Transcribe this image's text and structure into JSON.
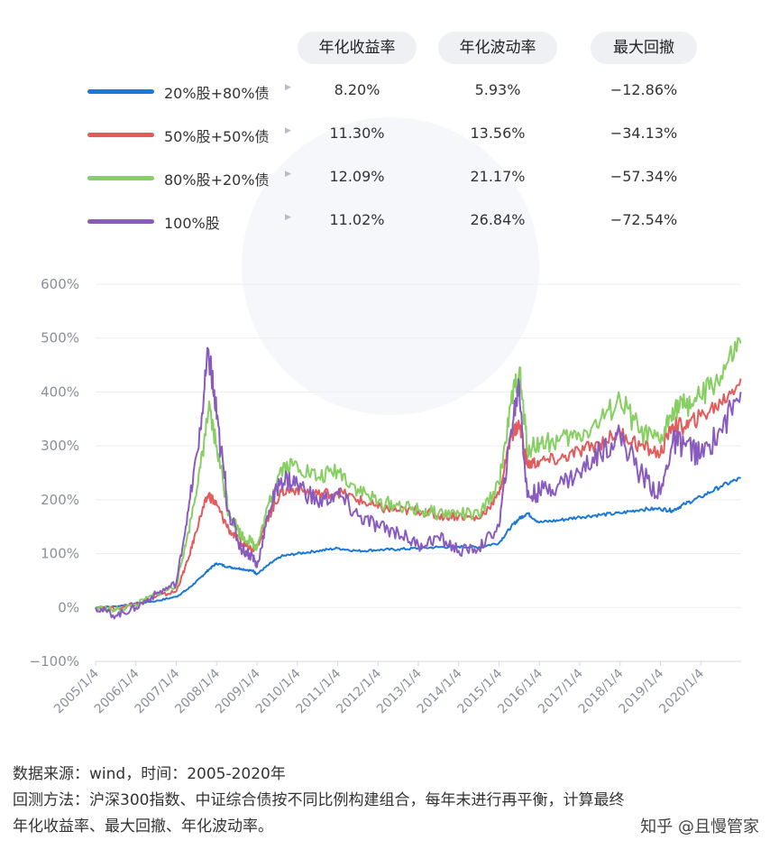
{
  "table": {
    "headers": [
      "年化收益率",
      "年化波动率",
      "最大回撤"
    ],
    "rows": [
      {
        "label": "20%股+80%债",
        "color": "#1a78d8",
        "ret": "8.20%",
        "vol": "5.93%",
        "dd": "−12.86%"
      },
      {
        "label": "50%股+50%债",
        "color": "#e35b5b",
        "ret": "11.30%",
        "vol": "13.56%",
        "dd": "−34.13%"
      },
      {
        "label": "80%股+20%债",
        "color": "#87cf62",
        "ret": "12.09%",
        "vol": "21.17%",
        "dd": "−57.34%"
      },
      {
        "label": "100%股",
        "color": "#8a5bbf",
        "ret": "11.02%",
        "vol": "26.84%",
        "dd": "−72.54%"
      }
    ]
  },
  "chart_data": {
    "type": "line",
    "y_tick_labels": [
      "600%",
      "500%",
      "400%",
      "300%",
      "200%",
      "100%",
      "0%",
      "−100%"
    ],
    "ylim": [
      -100,
      600
    ],
    "x_tick_labels": [
      "2005/1/4",
      "2006/1/4",
      "2007/1/4",
      "2008/1/4",
      "2009/1/4",
      "2010/1/4",
      "2011/1/4",
      "2012/1/4",
      "2013/1/4",
      "2014/1/4",
      "2015/1/4",
      "2016/1/4",
      "2017/1/4",
      "2018/1/4",
      "2019/1/4",
      "2020/1/4"
    ],
    "xlim": [
      2005.0,
      2021.0
    ],
    "grid": true,
    "series": [
      {
        "name": "20%股+80%债",
        "color": "#1a78d8",
        "x": [
          2005.0,
          2005.5,
          2006.0,
          2006.5,
          2007.0,
          2007.3,
          2007.6,
          2007.8,
          2008.0,
          2008.3,
          2008.6,
          2008.9,
          2009.0,
          2009.3,
          2009.6,
          2010.0,
          2010.5,
          2011.0,
          2011.5,
          2012.0,
          2012.5,
          2013.0,
          2013.5,
          2014.0,
          2014.5,
          2015.0,
          2015.3,
          2015.5,
          2015.7,
          2016.0,
          2016.5,
          2017.0,
          2017.5,
          2018.0,
          2018.5,
          2019.0,
          2019.3,
          2019.6,
          2020.0,
          2020.5,
          2020.99
        ],
        "y": [
          0,
          2,
          8,
          12,
          20,
          35,
          55,
          70,
          82,
          75,
          72,
          68,
          62,
          80,
          95,
          100,
          105,
          110,
          105,
          107,
          108,
          110,
          112,
          113,
          112,
          120,
          150,
          165,
          175,
          158,
          162,
          168,
          172,
          175,
          182,
          183,
          180,
          192,
          205,
          225,
          240
        ]
      },
      {
        "name": "50%股+50%债",
        "color": "#e35b5b",
        "x": [
          2005.0,
          2005.5,
          2006.0,
          2006.5,
          2007.0,
          2007.3,
          2007.6,
          2007.8,
          2008.0,
          2008.3,
          2008.6,
          2008.9,
          2009.0,
          2009.3,
          2009.6,
          2010.0,
          2010.5,
          2011.0,
          2011.5,
          2012.0,
          2012.5,
          2013.0,
          2013.5,
          2014.0,
          2014.5,
          2015.0,
          2015.3,
          2015.5,
          2015.7,
          2016.0,
          2016.5,
          2017.0,
          2017.5,
          2018.0,
          2018.5,
          2019.0,
          2019.3,
          2019.6,
          2020.0,
          2020.5,
          2020.99
        ],
        "y": [
          0,
          -3,
          8,
          20,
          30,
          90,
          170,
          210,
          190,
          145,
          120,
          110,
          115,
          170,
          215,
          220,
          210,
          215,
          200,
          185,
          180,
          180,
          170,
          170,
          165,
          210,
          320,
          340,
          265,
          270,
          275,
          290,
          305,
          325,
          300,
          285,
          340,
          335,
          355,
          380,
          425
        ]
      },
      {
        "name": "80%股+20%债",
        "color": "#87cf62",
        "x": [
          2005.0,
          2005.5,
          2006.0,
          2006.5,
          2007.0,
          2007.3,
          2007.6,
          2007.8,
          2008.0,
          2008.3,
          2008.6,
          2008.9,
          2009.0,
          2009.3,
          2009.6,
          2010.0,
          2010.5,
          2011.0,
          2011.5,
          2012.0,
          2012.5,
          2013.0,
          2013.5,
          2014.0,
          2014.5,
          2015.0,
          2015.3,
          2015.5,
          2015.7,
          2016.0,
          2016.5,
          2017.0,
          2017.5,
          2018.0,
          2018.5,
          2019.0,
          2019.3,
          2019.6,
          2020.0,
          2020.5,
          2020.99
        ],
        "y": [
          0,
          -5,
          5,
          25,
          40,
          140,
          260,
          365,
          300,
          180,
          135,
          120,
          110,
          195,
          260,
          265,
          240,
          255,
          220,
          195,
          190,
          180,
          175,
          175,
          170,
          230,
          380,
          440,
          295,
          305,
          310,
          320,
          345,
          385,
          325,
          305,
          370,
          375,
          390,
          430,
          490
        ]
      },
      {
        "name": "100%股",
        "color": "#8a5bbf",
        "x": [
          2005.0,
          2005.5,
          2006.0,
          2006.5,
          2007.0,
          2007.3,
          2007.6,
          2007.8,
          2008.0,
          2008.3,
          2008.6,
          2008.9,
          2009.0,
          2009.3,
          2009.6,
          2010.0,
          2010.5,
          2011.0,
          2011.5,
          2012.0,
          2012.5,
          2013.0,
          2013.5,
          2014.0,
          2014.5,
          2015.0,
          2015.3,
          2015.5,
          2015.7,
          2016.0,
          2016.5,
          2017.0,
          2017.5,
          2018.0,
          2018.5,
          2019.0,
          2019.3,
          2019.6,
          2020.0,
          2020.5,
          2020.99
        ],
        "y": [
          0,
          -15,
          0,
          25,
          45,
          180,
          330,
          478,
          350,
          180,
          110,
          95,
          75,
          180,
          240,
          230,
          195,
          210,
          170,
          150,
          140,
          115,
          130,
          105,
          110,
          150,
          330,
          415,
          205,
          215,
          230,
          250,
          290,
          320,
          250,
          210,
          305,
          305,
          280,
          330,
          400
        ]
      }
    ]
  },
  "footer": {
    "source_line": "数据来源：wind，时间：2005-2020年",
    "method_line1": "回测方法：沪深300指数、中证综合债按不同比例构建组合，每年末进行再平衡，计算最终",
    "method_line2": "年化收益率、最大回撤、年化波动率。",
    "brand": "知乎 @且慢管家"
  }
}
